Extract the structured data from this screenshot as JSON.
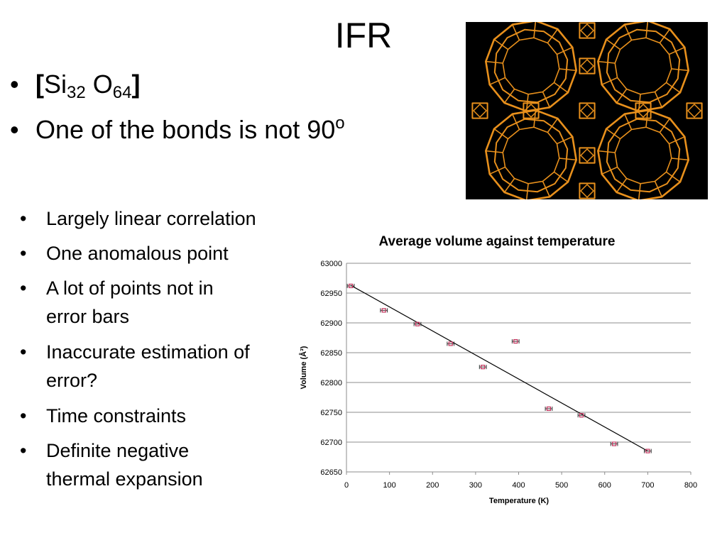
{
  "slide": {
    "title": "IFR",
    "top_bullets": {
      "formula": {
        "open": "[",
        "si": "Si",
        "si_n": "32",
        "o": " O",
        "o_n": "64",
        "close": "]"
      },
      "bond": {
        "text": "One of the bonds is not 90",
        "sup": "o"
      }
    },
    "bottom_bullets": [
      "Largely linear correlation",
      "One anomalous point",
      "A lot of points not in error bars",
      "Inaccurate estimation of error?",
      "Time constraints",
      "Definite negative thermal expansion"
    ]
  },
  "chart_data": {
    "type": "scatter",
    "title": "Average volume against temperature",
    "xlabel": "Temperature (K)",
    "ylabel": "Volume (Å³)",
    "xlim": [
      0,
      800
    ],
    "ylim": [
      62650,
      63000
    ],
    "xticks": [
      0,
      100,
      200,
      300,
      400,
      500,
      600,
      700,
      800
    ],
    "yticks": [
      62650,
      62700,
      62750,
      62800,
      62850,
      62900,
      62950,
      63000
    ],
    "grid": "horizontal",
    "points": [
      {
        "x": 10,
        "y": 62962
      },
      {
        "x": 87,
        "y": 62921
      },
      {
        "x": 165,
        "y": 62898
      },
      {
        "x": 242,
        "y": 62865
      },
      {
        "x": 317,
        "y": 62826
      },
      {
        "x": 393,
        "y": 62869
      },
      {
        "x": 470,
        "y": 62756
      },
      {
        "x": 546,
        "y": 62745
      },
      {
        "x": 622,
        "y": 62697
      },
      {
        "x": 700,
        "y": 62685
      }
    ],
    "x_error": 8,
    "trendline": {
      "x": [
        10,
        700
      ],
      "y": [
        62963,
        62685
      ]
    },
    "colors": {
      "marker": "#c0305a",
      "errorbar": "#333333",
      "line": "#000000",
      "grid": "#8c8c8c"
    }
  },
  "image": {
    "structure_color": "#e8901c"
  }
}
